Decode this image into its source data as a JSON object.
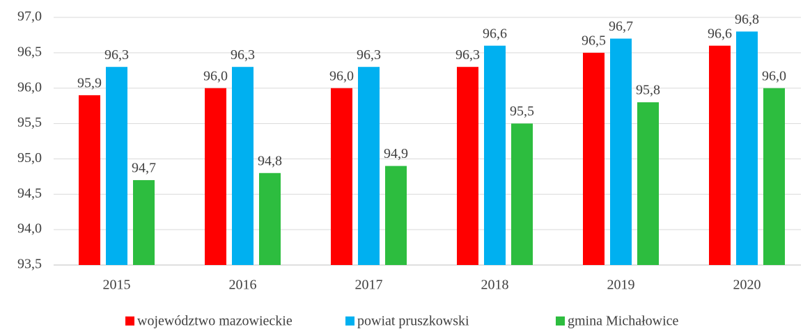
{
  "chart_data": {
    "type": "bar",
    "categories": [
      "2015",
      "2016",
      "2017",
      "2018",
      "2019",
      "2020"
    ],
    "series": [
      {
        "name": "województwo mazowieckie",
        "color": "#ff0000",
        "values": [
          95.9,
          96.0,
          96.0,
          96.3,
          96.5,
          96.6
        ],
        "value_labels": [
          "95,9",
          "96,0",
          "96,0",
          "96,3",
          "96,5",
          "96,6"
        ]
      },
      {
        "name": "powiat pruszkowski",
        "color": "#00b0f0",
        "values": [
          96.3,
          96.3,
          96.3,
          96.6,
          96.7,
          96.8
        ],
        "value_labels": [
          "96,3",
          "96,3",
          "96,3",
          "96,6",
          "96,7",
          "96,8"
        ]
      },
      {
        "name": "gmina Michałowice",
        "color": "#2dbd3f",
        "values": [
          94.7,
          94.8,
          94.9,
          95.5,
          95.8,
          96.0
        ],
        "value_labels": [
          "94,7",
          "94,8",
          "94,9",
          "95,5",
          "95,8",
          "96,0"
        ]
      }
    ],
    "ylim": [
      93.5,
      97.0
    ],
    "yticks": [
      {
        "value": 93.5,
        "label": "93,5"
      },
      {
        "value": 94.0,
        "label": "94,0"
      },
      {
        "value": 94.5,
        "label": "94,5"
      },
      {
        "value": 95.0,
        "label": "95,0"
      },
      {
        "value": 95.5,
        "label": "95,5"
      },
      {
        "value": 96.0,
        "label": "96,0"
      },
      {
        "value": 96.5,
        "label": "96,5"
      },
      {
        "value": 97.0,
        "label": "97,0"
      }
    ],
    "grid": true,
    "legend": "bottom"
  }
}
